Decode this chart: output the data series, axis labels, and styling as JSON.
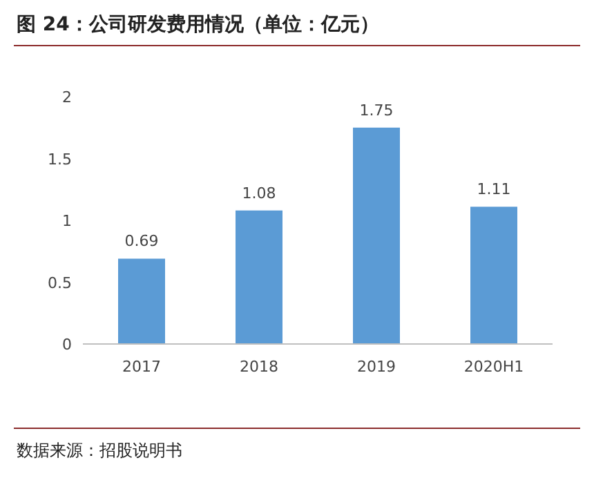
{
  "chart_data": {
    "type": "bar",
    "title": "图 24：公司研发费用情况（单位：亿元）",
    "categories": [
      "2017",
      "2018",
      "2019",
      "2020H1"
    ],
    "values": [
      0.69,
      1.08,
      1.75,
      1.11
    ],
    "color": "#5b9bd5",
    "ylim": [
      0,
      2
    ],
    "yticks": [
      0,
      0.5,
      1,
      1.5,
      2
    ],
    "data_labels": true,
    "annotations": [
      "数据来源：招股说明书"
    ]
  }
}
